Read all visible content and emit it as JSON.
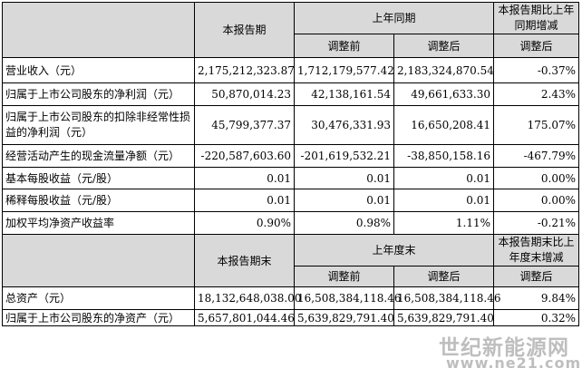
{
  "section1": {
    "headers": {
      "current": "本报告期",
      "prev_year": "上年同期",
      "change": "本报告期比上年同期增减",
      "before": "调整前",
      "after": "调整后",
      "change_after": "调整后"
    },
    "rows": [
      {
        "label": "营业收入（元）",
        "current": "2,175,212,323.87",
        "before": "1,712,179,577.42",
        "after": "2,183,324,870.54",
        "change": "-0.37%"
      },
      {
        "label": "归属于上市公司股东的净利润（元）",
        "current": "50,870,014.23",
        "before": "42,138,161.54",
        "after": "49,661,633.30",
        "change": "2.43%"
      },
      {
        "label": "归属于上市公司股东的扣除非经常性损益的净利润（元）",
        "current": "45,799,377.37",
        "before": "30,476,331.93",
        "after": "16,650,208.41",
        "change": "175.07%"
      },
      {
        "label": "经营活动产生的现金流量净额（元）",
        "current": "-220,587,603.60",
        "before": "-201,619,532.21",
        "after": "-38,850,158.16",
        "change": "-467.79%"
      },
      {
        "label": "基本每股收益（元/股）",
        "current": "0.01",
        "before": "0.01",
        "after": "0.01",
        "change": "0.00%"
      },
      {
        "label": "稀释每股收益（元/股）",
        "current": "0.01",
        "before": "0.01",
        "after": "0.01",
        "change": "0.00%"
      },
      {
        "label": "加权平均净资产收益率",
        "current": "0.90%",
        "before": "0.98%",
        "after": "1.11%",
        "change": "-0.21%"
      }
    ]
  },
  "section2": {
    "headers": {
      "current": "本报告期末",
      "prev_year": "上年度末",
      "change": "本报告期末比上年度末增减",
      "before": "调整前",
      "after": "调整后",
      "change_after": "调整后"
    },
    "rows": [
      {
        "label": "总资产（元）",
        "current": "18,132,648,038.00",
        "before": "16,508,384,118.46",
        "after": "16,508,384,118.46",
        "change": "9.84%"
      },
      {
        "label": "归属于上市公司股东的净资产（元）",
        "current": "5,657,801,044.46",
        "before": "5,639,829,791.40",
        "after": "5,639,829,791.40",
        "change": "0.32%"
      }
    ]
  },
  "watermark": {
    "text": "世纪新能源网",
    "url": "www.ne21.com"
  }
}
